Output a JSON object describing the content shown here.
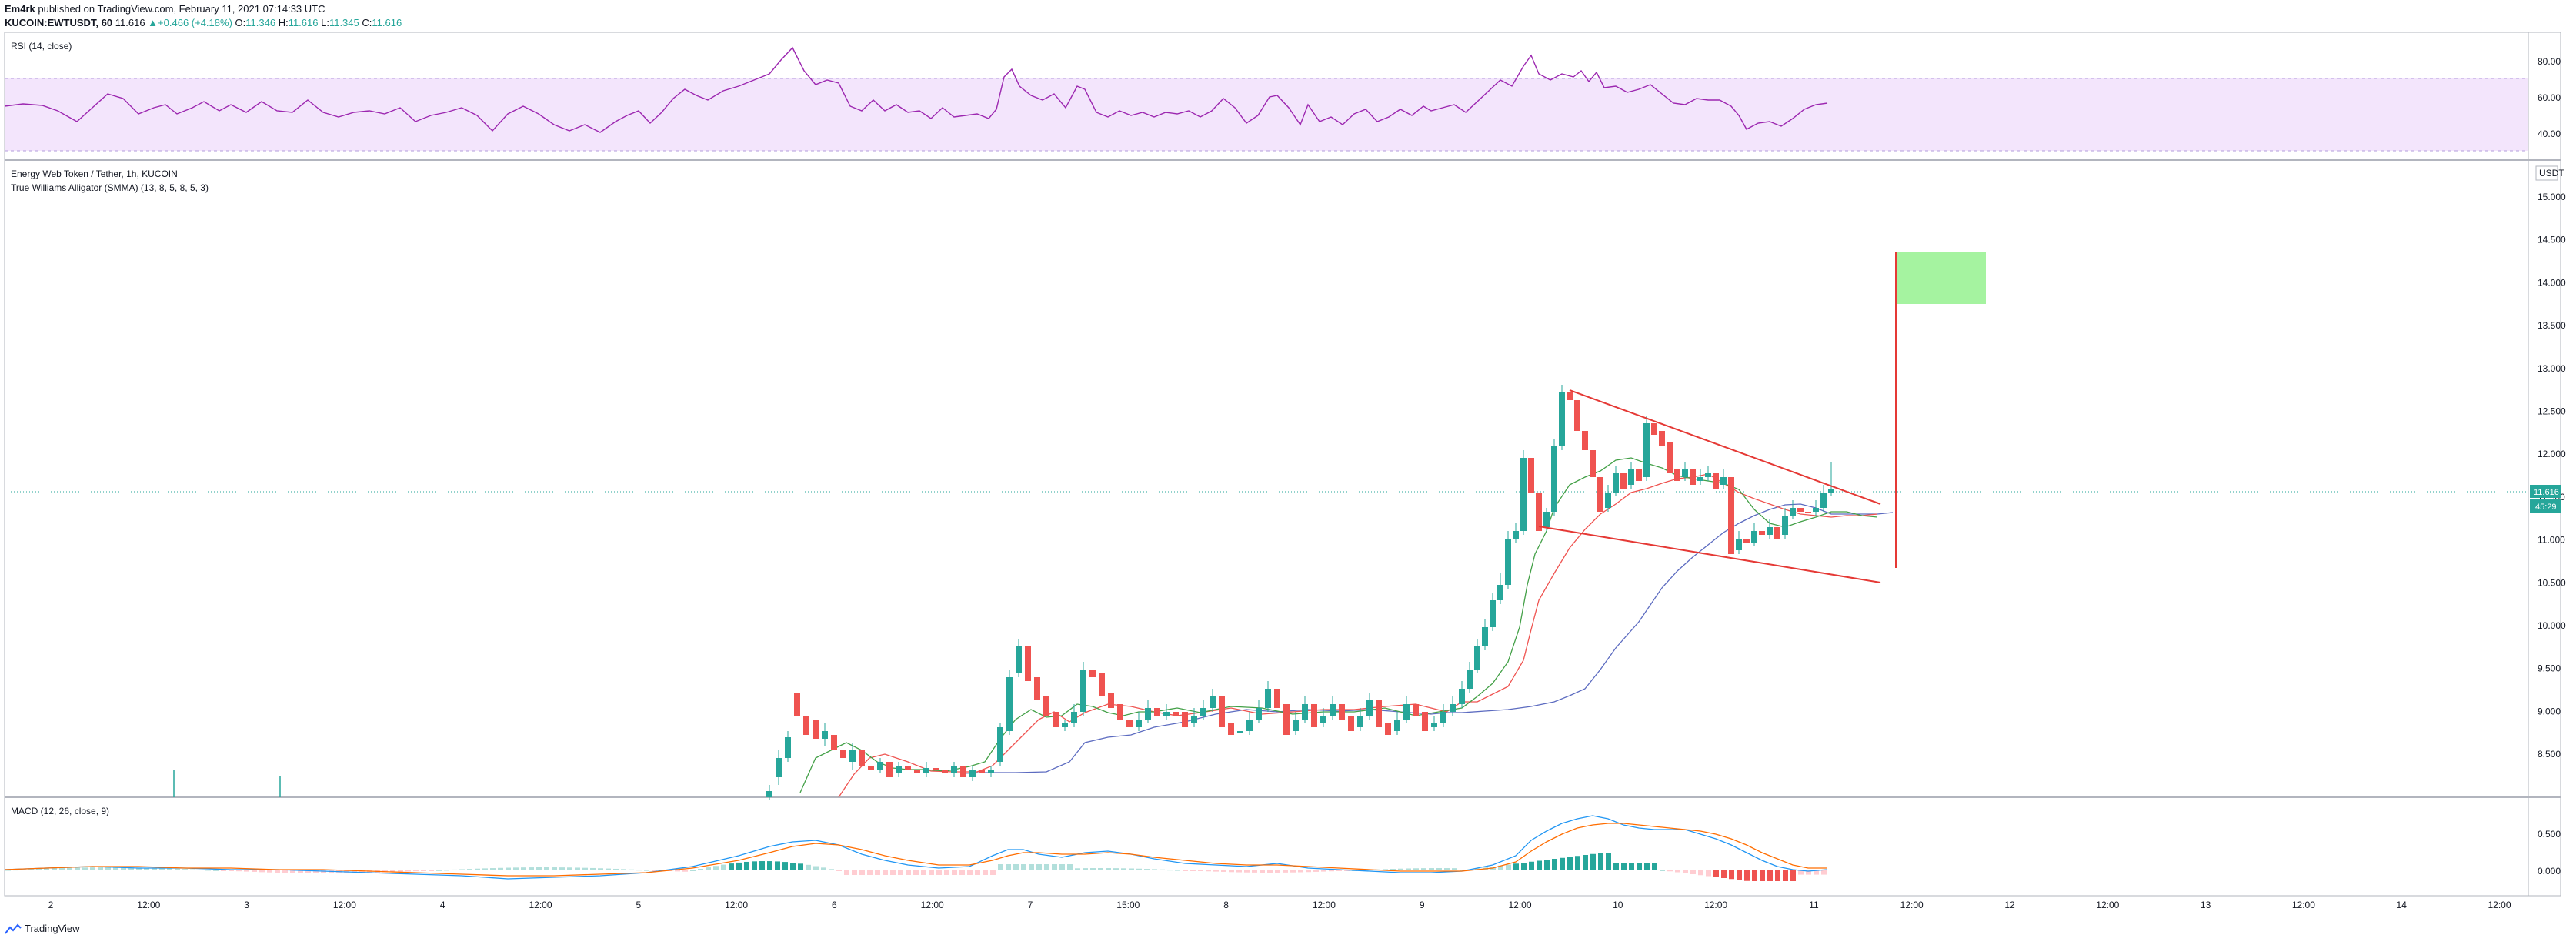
{
  "header": {
    "publisher": "Em4rk",
    "published_on": " published on TradingView.com, February 11, 2021 07:14:33 UTC",
    "symbol_line": "KUCOIN:EWTUSDT, 60",
    "last": "11.616",
    "change_arrow": "▲",
    "change": "+0.466 (+4.18%)",
    "o_label": "O:",
    "o_value": "11.346",
    "h_label": "H:",
    "h_value": "11.616",
    "l_label": "L:",
    "l_value": "11.345",
    "c_label": "C:",
    "c_value": "11.616"
  },
  "rsi_pane": {
    "title": "RSI (14, close)",
    "ticks": [
      "80.00",
      "60.00",
      "40.00"
    ],
    "line_color": "#9c27b0",
    "band_color": "#f3e5fc"
  },
  "main_pane": {
    "title": "Energy Web Token / Tether, 1h, KUCOIN",
    "indicator": "True Williams Alligator (SMMA) (13, 8, 5, 8, 5, 3)",
    "currency": "USDT",
    "price_ticks": [
      "15.000",
      "14.500",
      "14.000",
      "13.500",
      "13.000",
      "12.500",
      "12.000",
      "11.500",
      "11.000",
      "10.500",
      "10.000",
      "9.500",
      "9.000",
      "8.500"
    ],
    "last_price_label": "11.616",
    "countdown_label": "45:29",
    "up_color": "#26a69a",
    "down_color": "#ef5350",
    "jaw_color": "#5c6bc0",
    "teeth_color": "#ef5350",
    "lips_color": "#43a047",
    "target_box_color": "#a5f3a0",
    "trendline_color": "#e53935"
  },
  "macd_pane": {
    "title": "MACD (12, 26, close, 9)",
    "ticks": [
      "0.500",
      "0.000"
    ],
    "macd_color": "#2196f3",
    "signal_color": "#ff6d00"
  },
  "time_axis": {
    "labels": [
      "2",
      "12:00",
      "3",
      "12:00",
      "4",
      "12:00",
      "5",
      "12:00",
      "6",
      "12:00",
      "7",
      "15:00",
      "8",
      "12:00",
      "9",
      "12:00",
      "10",
      "12:00",
      "11",
      "12:00",
      "12",
      "12:00",
      "13",
      "12:00",
      "14",
      "12:00"
    ]
  },
  "footer": {
    "brand": "TradingView",
    "logo_icon": "tradingview-logo-icon"
  }
}
